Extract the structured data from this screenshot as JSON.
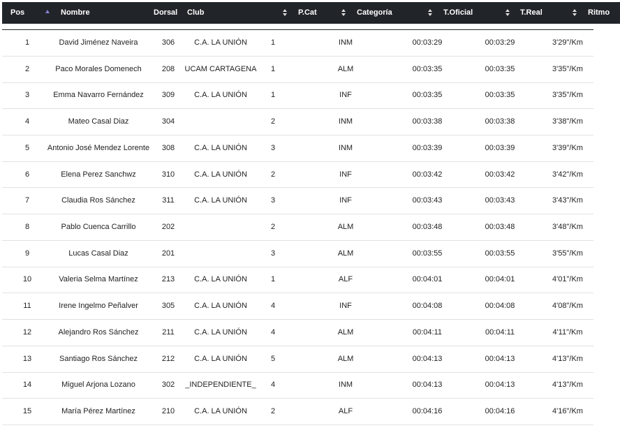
{
  "table": {
    "columns": [
      "Pos",
      "Nombre",
      "Dorsal",
      "Club",
      "P.Cat",
      "Categoría",
      "T.Oficial",
      "T.Real",
      "Ritmo"
    ],
    "rows": [
      [
        "1",
        "David Jiménez Naveira",
        "306",
        "C.A. LA UNIÓN",
        "1",
        "INM",
        "00:03:29",
        "00:03:29",
        "3'29\"/Km"
      ],
      [
        "2",
        "Paco Morales Domenech",
        "208",
        "UCAM CARTAGENA",
        "1",
        "ALM",
        "00:03:35",
        "00:03:35",
        "3'35\"/Km"
      ],
      [
        "3",
        "Emma Navarro Fernández",
        "309",
        "C.A. LA UNIÓN",
        "1",
        "INF",
        "00:03:35",
        "00:03:35",
        "3'35\"/Km"
      ],
      [
        "4",
        "Mateo Casal Diaz",
        "304",
        null,
        "2",
        "INM",
        "00:03:38",
        "00:03:38",
        "3'38\"/Km"
      ],
      [
        "5",
        "Antonio José Mendez Lorente",
        "308",
        "C.A. LA UNIÓN",
        "3",
        "INM",
        "00:03:39",
        "00:03:39",
        "3'39\"/Km"
      ],
      [
        "6",
        "Elena Perez Sanchwz",
        "310",
        "C.A. LA UNIÓN",
        "2",
        "INF",
        "00:03:42",
        "00:03:42",
        "3'42\"/Km"
      ],
      [
        "7",
        "Claudia Ros Sánchez",
        "311",
        "C.A. LA UNIÓN",
        "3",
        "INF",
        "00:03:43",
        "00:03:43",
        "3'43\"/Km"
      ],
      [
        "8",
        "Pablo Cuenca Carrillo",
        "202",
        null,
        "2",
        "ALM",
        "00:03:48",
        "00:03:48",
        "3'48\"/Km"
      ],
      [
        "9",
        "Lucas Casal Diaz",
        "201",
        null,
        "3",
        "ALM",
        "00:03:55",
        "00:03:55",
        "3'55\"/Km"
      ],
      [
        "10",
        "Valeria Selma Martínez",
        "213",
        "C.A. LA UNIÓN",
        "1",
        "ALF",
        "00:04:01",
        "00:04:01",
        "4'01\"/Km"
      ],
      [
        "11",
        "Irene Ingelmo Peñalver",
        "305",
        "C.A. LA UNIÓN",
        "4",
        "INF",
        "00:04:08",
        "00:04:08",
        "4'08\"/Km"
      ],
      [
        "12",
        "Alejandro Ros Sánchez",
        "211",
        "C.A. LA UNIÓN",
        "4",
        "ALM",
        "00:04:11",
        "00:04:11",
        "4'11\"/Km"
      ],
      [
        "13",
        "Santiago Ros Sánchez",
        "212",
        "C.A. LA UNIÓN",
        "5",
        "ALM",
        "00:04:13",
        "00:04:13",
        "4'13\"/Km"
      ],
      [
        "14",
        "Miguel Arjona Lozano",
        "302",
        "_INDEPENDIENTE_",
        "4",
        "INM",
        "00:04:13",
        "00:04:13",
        "4'13\"/Km"
      ],
      [
        "15",
        "María Pérez Martínez",
        "210",
        "C.A. LA UNIÓN",
        "2",
        "ALF",
        "00:04:16",
        "00:04:16",
        "4'16\"/Km"
      ]
    ]
  }
}
